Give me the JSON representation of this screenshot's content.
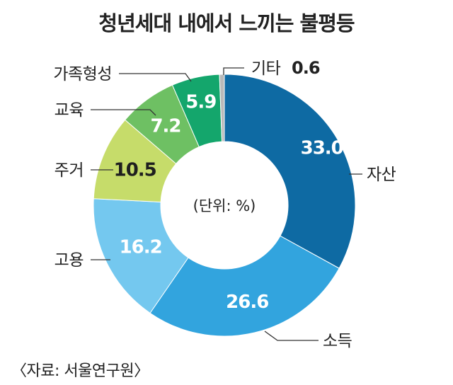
{
  "chart_data": {
    "type": "donut",
    "title": "청년세대 내에서 느끼는 불평등",
    "center_label": "(단위: %)",
    "source": "〈자료: 서울연구원〉",
    "slices": [
      {
        "label": "자산",
        "value": 33.0,
        "value_text": "33.0",
        "color": "#0e6aa3"
      },
      {
        "label": "소득",
        "value": 26.6,
        "value_text": "26.6",
        "color": "#32a4de"
      },
      {
        "label": "고용",
        "value": 16.2,
        "value_text": "16.2",
        "color": "#74c8ef"
      },
      {
        "label": "주거",
        "value": 10.5,
        "value_text": "10.5",
        "color": "#c6dc6a"
      },
      {
        "label": "교육",
        "value": 7.2,
        "value_text": "7.2",
        "color": "#6ec063"
      },
      {
        "label": "가족형성",
        "value": 5.9,
        "value_text": "5.9",
        "color": "#14a66c"
      },
      {
        "label": "기타",
        "value": 0.6,
        "value_text": "0.6",
        "color": "#b9b9b9"
      }
    ]
  }
}
